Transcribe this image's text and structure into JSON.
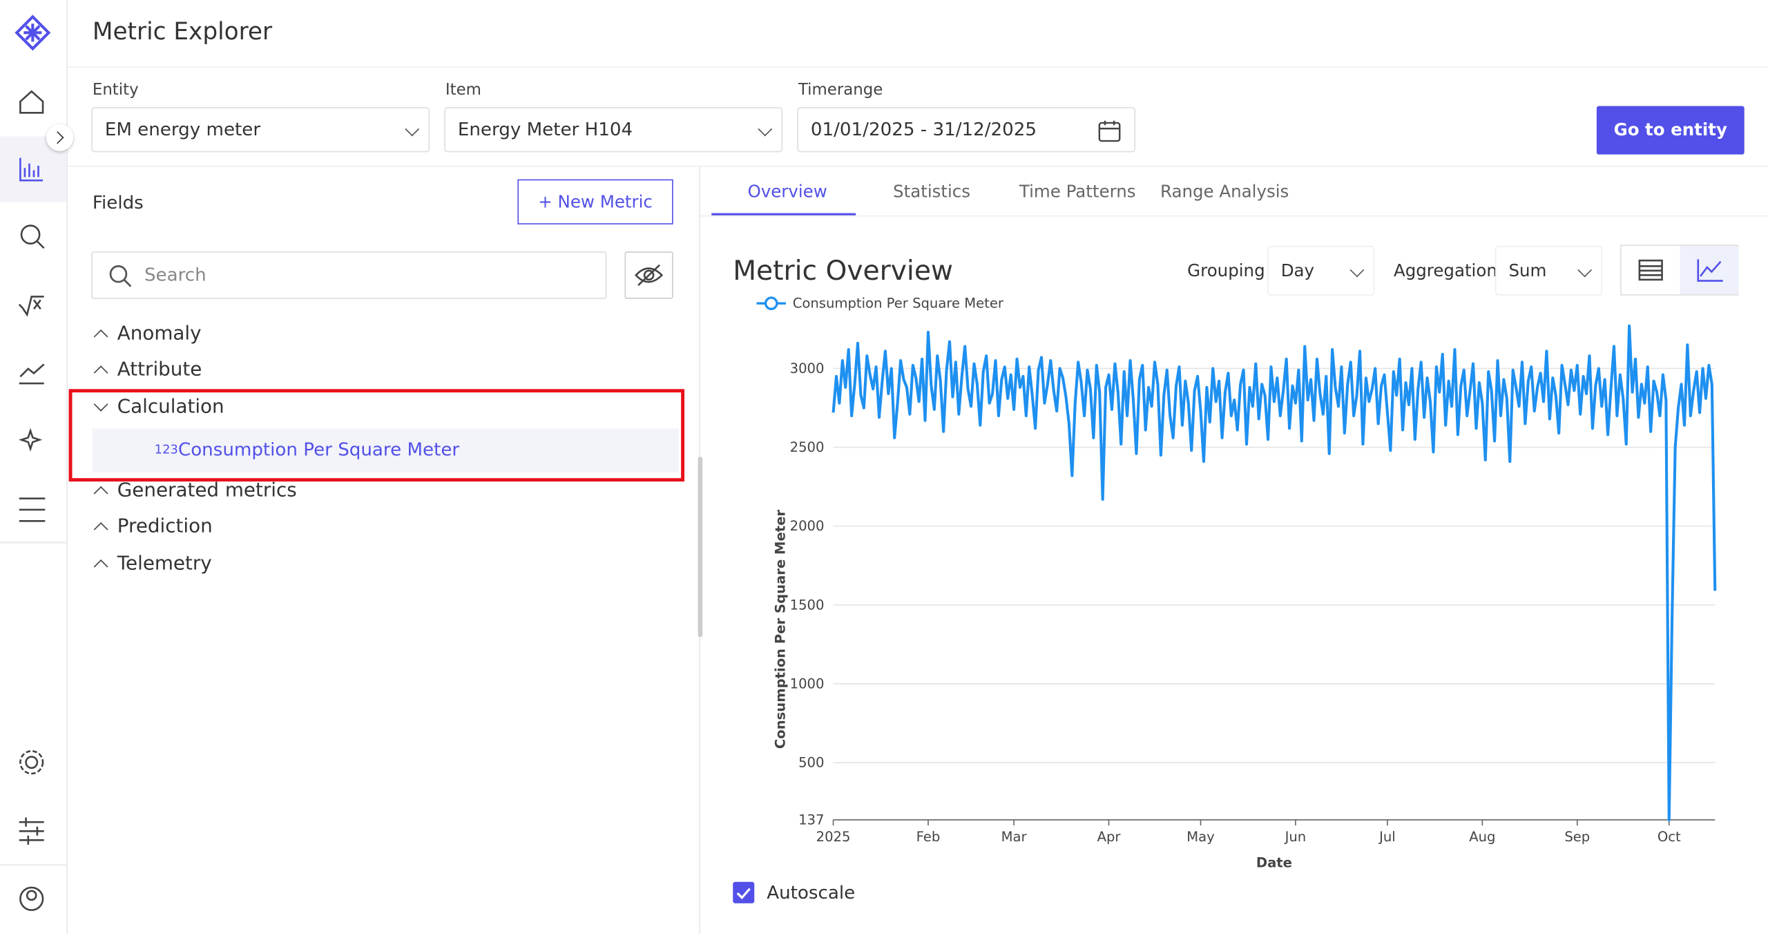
{
  "header": {
    "title": "Metric Explorer"
  },
  "filters": [
    {
      "label": "Entity",
      "value": "EM energy meter"
    },
    {
      "label": "Item",
      "value": "Energy Meter H104"
    },
    {
      "label": "Timerange",
      "value": "01/01/2025 - 31/12/2025"
    }
  ],
  "go_button": "Go to entity",
  "fields": {
    "title": "Fields",
    "new_metric": "+ New Metric",
    "search_placeholder": "Search",
    "groups": [
      {
        "name": "Anomaly"
      },
      {
        "name": "Attribute"
      },
      {
        "name": "Calculation",
        "items": [
          {
            "icon": "123",
            "label": "Consumption Per Square Meter"
          }
        ]
      },
      {
        "name": "Generated metrics"
      },
      {
        "name": "Prediction"
      },
      {
        "name": "Telemetry"
      }
    ]
  },
  "tabs": [
    "Overview",
    "Statistics",
    "Time Patterns",
    "Range Analysis"
  ],
  "overview": {
    "title": "Metric Overview",
    "grouping_label": "Grouping",
    "grouping": "Day",
    "aggregation_label": "Aggregation",
    "aggregation": "Sum",
    "autoscale": "Autoscale"
  },
  "chart_data": {
    "type": "line",
    "x_label": "Date",
    "y_label": "Consumption Per Square Meter",
    "grid": true,
    "xlim": [
      0,
      288
    ],
    "xticks": [
      {
        "value": 0,
        "label": "2025"
      },
      {
        "value": 31,
        "label": "Feb"
      },
      {
        "value": 59,
        "label": "Mar"
      },
      {
        "value": 90,
        "label": "Apr"
      },
      {
        "value": 120,
        "label": "May"
      },
      {
        "value": 151,
        "label": "Jun"
      },
      {
        "value": 181,
        "label": "Jul"
      },
      {
        "value": 212,
        "label": "Aug"
      },
      {
        "value": 243,
        "label": "Sep"
      },
      {
        "value": 273,
        "label": "Oct"
      }
    ],
    "ylim": [
      137,
      3270
    ],
    "yticks": [
      137,
      500,
      1000,
      1500,
      2000,
      2500,
      3000
    ],
    "series": [
      {
        "name": "Consumption Per Square Meter",
        "color": "#1e90f0",
        "values": [
          2720,
          2950,
          2780,
          3050,
          2880,
          3120,
          2700,
          2900,
          3160,
          2830,
          2750,
          3080,
          2960,
          2870,
          3010,
          2690,
          2920,
          3110,
          2840,
          3000,
          2560,
          2780,
          3050,
          2930,
          2880,
          2710,
          3020,
          2940,
          2790,
          3060,
          2670,
          3230,
          2890,
          2740,
          3080,
          2920,
          2600,
          2990,
          3170,
          2820,
          3040,
          2710,
          2950,
          3140,
          2870,
          2760,
          3030,
          2900,
          2640,
          2980,
          3080,
          2780,
          2840,
          3050,
          2700,
          2930,
          3010,
          2810,
          2960,
          2740,
          3060,
          2880,
          2950,
          2700,
          3010,
          2830,
          2620,
          2990,
          3070,
          2780,
          2900,
          3050,
          2860,
          2730,
          3000,
          2940,
          2820,
          2650,
          2320,
          2780,
          3040,
          2910,
          2700,
          2990,
          2870,
          2560,
          3020,
          2850,
          2170,
          2880,
          2960,
          2740,
          3030,
          2850,
          2520,
          2980,
          2700,
          3050,
          2800,
          2460,
          2930,
          3020,
          2610,
          2880,
          2760,
          3040,
          2900,
          2450,
          2830,
          2990,
          2700,
          2560,
          2890,
          3010,
          2640,
          2920,
          2780,
          2480,
          2860,
          2950,
          2730,
          2410,
          2880,
          2660,
          3000,
          2790,
          2920,
          2560,
          2850,
          2970,
          2700,
          2800,
          2610,
          2900,
          2990,
          2520,
          2880,
          2760,
          3030,
          2680,
          2900,
          2830,
          2550,
          3010,
          2790,
          2940,
          2700,
          2860,
          3060,
          2620,
          2890,
          2780,
          2990,
          2540,
          3140,
          2800,
          2930,
          2670,
          3060,
          2840,
          2710,
          2950,
          2460,
          3120,
          2880,
          2760,
          3010,
          2590,
          2900,
          3040,
          2700,
          2830,
          3110,
          2520,
          2940,
          2790,
          2870,
          3000,
          2650,
          2890,
          2960,
          2720,
          2480,
          2980,
          2830,
          3060,
          2610,
          2910,
          2770,
          3000,
          2550,
          2870,
          3040,
          2690,
          2940,
          2790,
          2470,
          3010,
          2850,
          3090,
          2640,
          2920,
          2760,
          3120,
          2580,
          2890,
          2990,
          2700,
          2860,
          3030,
          2620,
          2910,
          2780,
          2420,
          2980,
          2860,
          2540,
          3050,
          2700,
          2930,
          2810,
          2410,
          2990,
          2880,
          2760,
          3040,
          2650,
          2920,
          3010,
          2730,
          2880,
          2970,
          2790,
          3110,
          2680,
          2940,
          2830,
          2590,
          3020,
          2900,
          2770,
          2990,
          2860,
          3020,
          2710,
          2950,
          2840,
          3080,
          2620,
          2890,
          3000,
          2760,
          2930,
          2580,
          2870,
          3140,
          2700,
          2960,
          2810,
          2520,
          3270,
          2850,
          3060,
          2690,
          2900,
          2780,
          3010,
          2600,
          2920,
          2850,
          2700,
          2960,
          2800,
          137,
          1450,
          2500,
          2750,
          2900,
          2640,
          3150,
          2700,
          2860,
          2980,
          2720,
          3000,
          2810,
          3020,
          2900,
          1590
        ]
      }
    ]
  }
}
